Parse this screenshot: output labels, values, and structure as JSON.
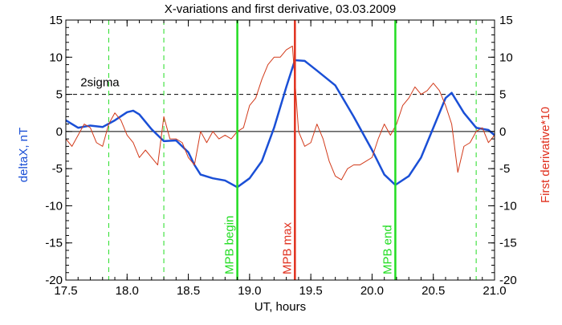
{
  "chart_data": {
    "type": "line",
    "title": "X-variations and first derivative, 03.03.2009",
    "xlabel": "UT, hours",
    "ylabel_left": "deltaX, nT",
    "ylabel_right": "First derivative*10",
    "xlim": [
      17.5,
      21.0
    ],
    "ylim": [
      -20,
      15
    ],
    "xticks": [
      "17.5",
      "18.0",
      "18.5",
      "19.0",
      "19.5",
      "20.0",
      "20.5",
      "21.0"
    ],
    "xtick_values": [
      17.5,
      18.0,
      18.5,
      19.0,
      19.5,
      20.0,
      20.5,
      21.0
    ],
    "yticks": [
      "-20",
      "-15",
      "-10",
      "-5",
      "0",
      "5",
      "10",
      "15"
    ],
    "ytick_values": [
      -20,
      -15,
      -10,
      -5,
      0,
      5,
      10,
      15
    ],
    "colors": {
      "deltaX": "#1a4fd6",
      "derivative": "#d23a1a",
      "mpb_bounds": "#22dd22",
      "mpb_max": "#e0301e",
      "ylabel_left": "#1a4fd6",
      "ylabel_right": "#e0301e"
    },
    "threshold": {
      "label": "2sigma",
      "value": 5,
      "style": "dashed"
    },
    "zero_line": 0,
    "dashed_verticals": [
      17.85,
      18.3,
      20.85
    ],
    "markers": [
      {
        "x": 18.9,
        "label": "MPB begin",
        "color": "#22dd22"
      },
      {
        "x": 19.37,
        "label": "MPB max",
        "color": "#e0301e"
      },
      {
        "x": 20.19,
        "label": "MPB end",
        "color": "#22dd22"
      }
    ],
    "series": [
      {
        "name": "deltaX, nT",
        "axis": "left",
        "x": [
          17.5,
          17.6,
          17.7,
          17.8,
          17.9,
          18.0,
          18.05,
          18.1,
          18.2,
          18.3,
          18.4,
          18.5,
          18.55,
          18.6,
          18.7,
          18.8,
          18.9,
          19.0,
          19.1,
          19.2,
          19.3,
          19.37,
          19.45,
          19.55,
          19.7,
          19.85,
          20.0,
          20.1,
          20.19,
          20.3,
          20.4,
          20.5,
          20.6,
          20.65,
          20.75,
          20.85,
          20.95,
          21.0
        ],
        "y": [
          1.5,
          0.5,
          0.8,
          0.6,
          1.5,
          2.6,
          2.8,
          2.3,
          0.3,
          -1.3,
          -1.2,
          -2.8,
          -4.5,
          -5.8,
          -6.3,
          -6.6,
          -7.5,
          -6.3,
          -4.0,
          0.5,
          6.0,
          9.6,
          9.5,
          8.2,
          6.2,
          2.0,
          -2.5,
          -5.8,
          -7.2,
          -6.0,
          -3.5,
          0.5,
          4.5,
          5.2,
          2.5,
          0.5,
          0.2,
          -0.5
        ]
      },
      {
        "name": "First derivative*10",
        "axis": "right",
        "x": [
          17.5,
          17.55,
          17.6,
          17.65,
          17.7,
          17.75,
          17.8,
          17.85,
          17.9,
          17.95,
          18.0,
          18.05,
          18.1,
          18.15,
          18.2,
          18.25,
          18.3,
          18.35,
          18.4,
          18.45,
          18.5,
          18.55,
          18.6,
          18.65,
          18.7,
          18.75,
          18.8,
          18.85,
          18.9,
          18.95,
          19.0,
          19.05,
          19.1,
          19.15,
          19.2,
          19.25,
          19.3,
          19.35,
          19.4,
          19.45,
          19.5,
          19.55,
          19.6,
          19.65,
          19.7,
          19.75,
          19.8,
          19.85,
          19.9,
          19.95,
          20.0,
          20.05,
          20.1,
          20.15,
          20.2,
          20.25,
          20.3,
          20.35,
          20.4,
          20.45,
          20.5,
          20.55,
          20.6,
          20.65,
          20.7,
          20.75,
          20.8,
          20.85,
          20.9,
          20.95,
          21.0
        ],
        "y": [
          -1.0,
          -2.0,
          -0.5,
          1.0,
          0.5,
          -1.5,
          -2.0,
          1.0,
          2.5,
          1.5,
          -0.5,
          -1.5,
          -3.5,
          -2.5,
          -3.5,
          -4.5,
          2.0,
          -1.0,
          -1.0,
          -1.5,
          -3.5,
          -4.5,
          0.0,
          -1.5,
          0.0,
          -1.0,
          -0.5,
          -1.0,
          0.0,
          0.5,
          3.5,
          4.5,
          7.0,
          9.0,
          10.0,
          10.0,
          11.0,
          11.5,
          0.0,
          -2.0,
          -1.5,
          1.0,
          -1.0,
          -4.0,
          -6.0,
          -6.5,
          -5.0,
          -4.5,
          -4.5,
          -4.0,
          -3.5,
          -1.0,
          1.0,
          -0.5,
          1.0,
          3.5,
          4.5,
          6.0,
          5.0,
          5.5,
          6.5,
          5.5,
          3.5,
          1.0,
          -5.5,
          -2.0,
          -1.5,
          0.0,
          0.5,
          -1.5,
          -0.5
        ]
      }
    ]
  }
}
